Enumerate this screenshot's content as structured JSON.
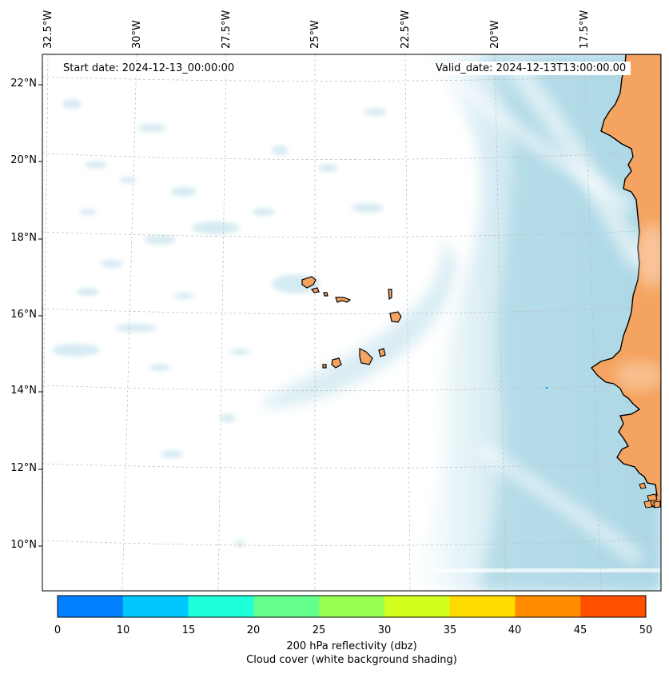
{
  "map": {
    "start_date": "Start date: 2024-12-13_00:00:00",
    "valid_date": "Valid_date: 2024-12-13T13:00:00.00",
    "lon_labels": [
      "32.5°W",
      "30°W",
      "27.5°W",
      "25°W",
      "22.5°W",
      "20°W",
      "17.5°W"
    ],
    "lat_labels": [
      "22°N",
      "20°N",
      "18°N",
      "16°N",
      "14°N",
      "12°N",
      "10°N"
    ],
    "colors": {
      "land": "#f4a460",
      "cloud": "#add8e6",
      "coast": "#000000"
    }
  },
  "colorbar": {
    "ticks": [
      "0",
      "10",
      "15",
      "20",
      "25",
      "30",
      "35",
      "40",
      "45",
      "50"
    ],
    "colors": [
      "#0080ff",
      "#00c8ff",
      "#1effdc",
      "#64ff8c",
      "#96ff50",
      "#d2ff1e",
      "#ffdc00",
      "#ff8c00",
      "#ff5000"
    ],
    "label_line1": "200 hPa reflectivity (dbz)",
    "label_line2": "Cloud cover (white background shading)"
  }
}
